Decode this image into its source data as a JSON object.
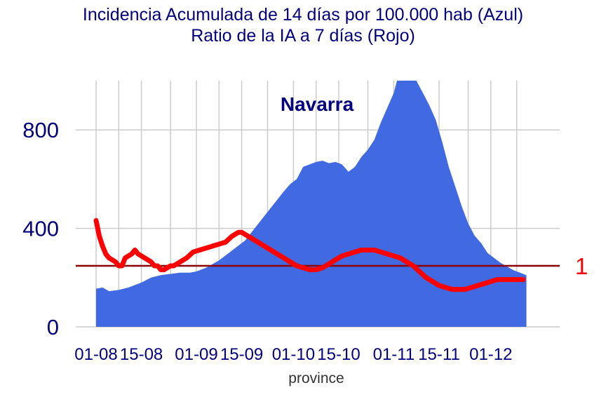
{
  "title_line1": "Incidencia Acumulada de 14 días por 100.000 hab (Azul)",
  "title_line2": "Ratio de la IA a 7 días (Rojo)",
  "colors": {
    "area": "#4169E1",
    "line": "#FF0000",
    "refline": "#8B0000",
    "text": "#000080",
    "grid": "#CCCCCC"
  },
  "chart_data": {
    "type": "area",
    "panel_label": "Navarra",
    "xlabel": "province",
    "ylabel": "",
    "xlim": [
      0,
      137
    ],
    "ylim": [
      0,
      1000
    ],
    "yticks": [
      0,
      400,
      800
    ],
    "ytick_labels": [
      "0",
      "400",
      "800"
    ],
    "xticks": [
      {
        "x": 0,
        "label": "01-08"
      },
      {
        "x": 14,
        "label": "15-08"
      },
      {
        "x": 31,
        "label": "01-09"
      },
      {
        "x": 45,
        "label": "15-09"
      },
      {
        "x": 61,
        "label": "01-10"
      },
      {
        "x": 75,
        "label": "15-10"
      },
      {
        "x": 92,
        "label": "01-11"
      },
      {
        "x": 106,
        "label": "15-11"
      },
      {
        "x": 122,
        "label": "01-12"
      }
    ],
    "x_minor_grid": [
      7,
      23,
      38,
      53,
      68,
      84,
      99,
      115,
      130
    ],
    "series": [
      {
        "type": "area",
        "points": [
          [
            0,
            155
          ],
          [
            2,
            160
          ],
          [
            4,
            145
          ],
          [
            7,
            150
          ],
          [
            10,
            160
          ],
          [
            12,
            170
          ],
          [
            14,
            180
          ],
          [
            17,
            200
          ],
          [
            20,
            210
          ],
          [
            23,
            215
          ],
          [
            26,
            220
          ],
          [
            29,
            220
          ],
          [
            31,
            225
          ],
          [
            34,
            240
          ],
          [
            38,
            270
          ],
          [
            41,
            300
          ],
          [
            44,
            330
          ],
          [
            46,
            350
          ],
          [
            49,
            400
          ],
          [
            52,
            450
          ],
          [
            55,
            500
          ],
          [
            58,
            550
          ],
          [
            60,
            580
          ],
          [
            62,
            600
          ],
          [
            64,
            650
          ],
          [
            66,
            660
          ],
          [
            68,
            670
          ],
          [
            70,
            675
          ],
          [
            72,
            665
          ],
          [
            74,
            670
          ],
          [
            76,
            660
          ],
          [
            78,
            630
          ],
          [
            80,
            650
          ],
          [
            82,
            690
          ],
          [
            84,
            720
          ],
          [
            86,
            760
          ],
          [
            88,
            830
          ],
          [
            90,
            890
          ],
          [
            92,
            950
          ],
          [
            93,
            1000
          ],
          [
            99,
            1000
          ],
          [
            101,
            950
          ],
          [
            103,
            900
          ],
          [
            105,
            840
          ],
          [
            107,
            750
          ],
          [
            109,
            650
          ],
          [
            111,
            570
          ],
          [
            113,
            490
          ],
          [
            115,
            420
          ],
          [
            117,
            370
          ],
          [
            119,
            340
          ],
          [
            121,
            300
          ],
          [
            123,
            280
          ],
          [
            125,
            260
          ],
          [
            127,
            245
          ],
          [
            129,
            230
          ],
          [
            131,
            220
          ],
          [
            132,
            215
          ],
          [
            133,
            210
          ]
        ]
      },
      {
        "type": "line",
        "ratio_scale": {
          "value_at_1": 248,
          "units_per_1": 800
        },
        "points": [
          [
            0,
            1.23
          ],
          [
            1,
            1.15
          ],
          [
            2,
            1.1
          ],
          [
            3,
            1.06
          ],
          [
            4,
            1.04
          ],
          [
            5,
            1.03
          ],
          [
            6,
            1.02
          ],
          [
            7,
            1.0
          ],
          [
            8,
            1.0
          ],
          [
            9,
            1.04
          ],
          [
            10,
            1.05
          ],
          [
            11,
            1.06
          ],
          [
            12,
            1.08
          ],
          [
            13,
            1.06
          ],
          [
            14,
            1.05
          ],
          [
            15,
            1.04
          ],
          [
            16,
            1.03
          ],
          [
            17,
            1.02
          ],
          [
            18,
            1.0
          ],
          [
            19,
            1.0
          ],
          [
            20,
            0.98
          ],
          [
            21,
            0.98
          ],
          [
            22,
            0.99
          ],
          [
            23,
            1.0
          ],
          [
            24,
            1.0
          ],
          [
            26,
            1.02
          ],
          [
            28,
            1.04
          ],
          [
            30,
            1.07
          ],
          [
            32,
            1.08
          ],
          [
            34,
            1.09
          ],
          [
            36,
            1.1
          ],
          [
            38,
            1.11
          ],
          [
            40,
            1.12
          ],
          [
            42,
            1.15
          ],
          [
            43,
            1.16
          ],
          [
            44,
            1.17
          ],
          [
            45,
            1.17
          ],
          [
            46,
            1.16
          ],
          [
            48,
            1.14
          ],
          [
            50,
            1.12
          ],
          [
            52,
            1.1
          ],
          [
            54,
            1.08
          ],
          [
            56,
            1.06
          ],
          [
            58,
            1.04
          ],
          [
            60,
            1.02
          ],
          [
            62,
            1.0
          ],
          [
            64,
            0.99
          ],
          [
            66,
            0.98
          ],
          [
            68,
            0.98
          ],
          [
            70,
            0.99
          ],
          [
            72,
            1.01
          ],
          [
            74,
            1.03
          ],
          [
            76,
            1.05
          ],
          [
            78,
            1.06
          ],
          [
            80,
            1.07
          ],
          [
            82,
            1.08
          ],
          [
            84,
            1.08
          ],
          [
            86,
            1.08
          ],
          [
            88,
            1.07
          ],
          [
            90,
            1.06
          ],
          [
            92,
            1.05
          ],
          [
            94,
            1.04
          ],
          [
            96,
            1.02
          ],
          [
            98,
            1.0
          ],
          [
            100,
            0.97
          ],
          [
            102,
            0.94
          ],
          [
            104,
            0.92
          ],
          [
            106,
            0.9
          ],
          [
            108,
            0.89
          ],
          [
            110,
            0.88
          ],
          [
            112,
            0.88
          ],
          [
            114,
            0.88
          ],
          [
            116,
            0.89
          ],
          [
            118,
            0.9
          ],
          [
            120,
            0.91
          ],
          [
            122,
            0.92
          ],
          [
            124,
            0.93
          ],
          [
            126,
            0.93
          ],
          [
            128,
            0.93
          ],
          [
            130,
            0.93
          ],
          [
            132,
            0.93
          ]
        ]
      }
    ],
    "hline": {
      "ratio": 1,
      "label": "1"
    }
  }
}
